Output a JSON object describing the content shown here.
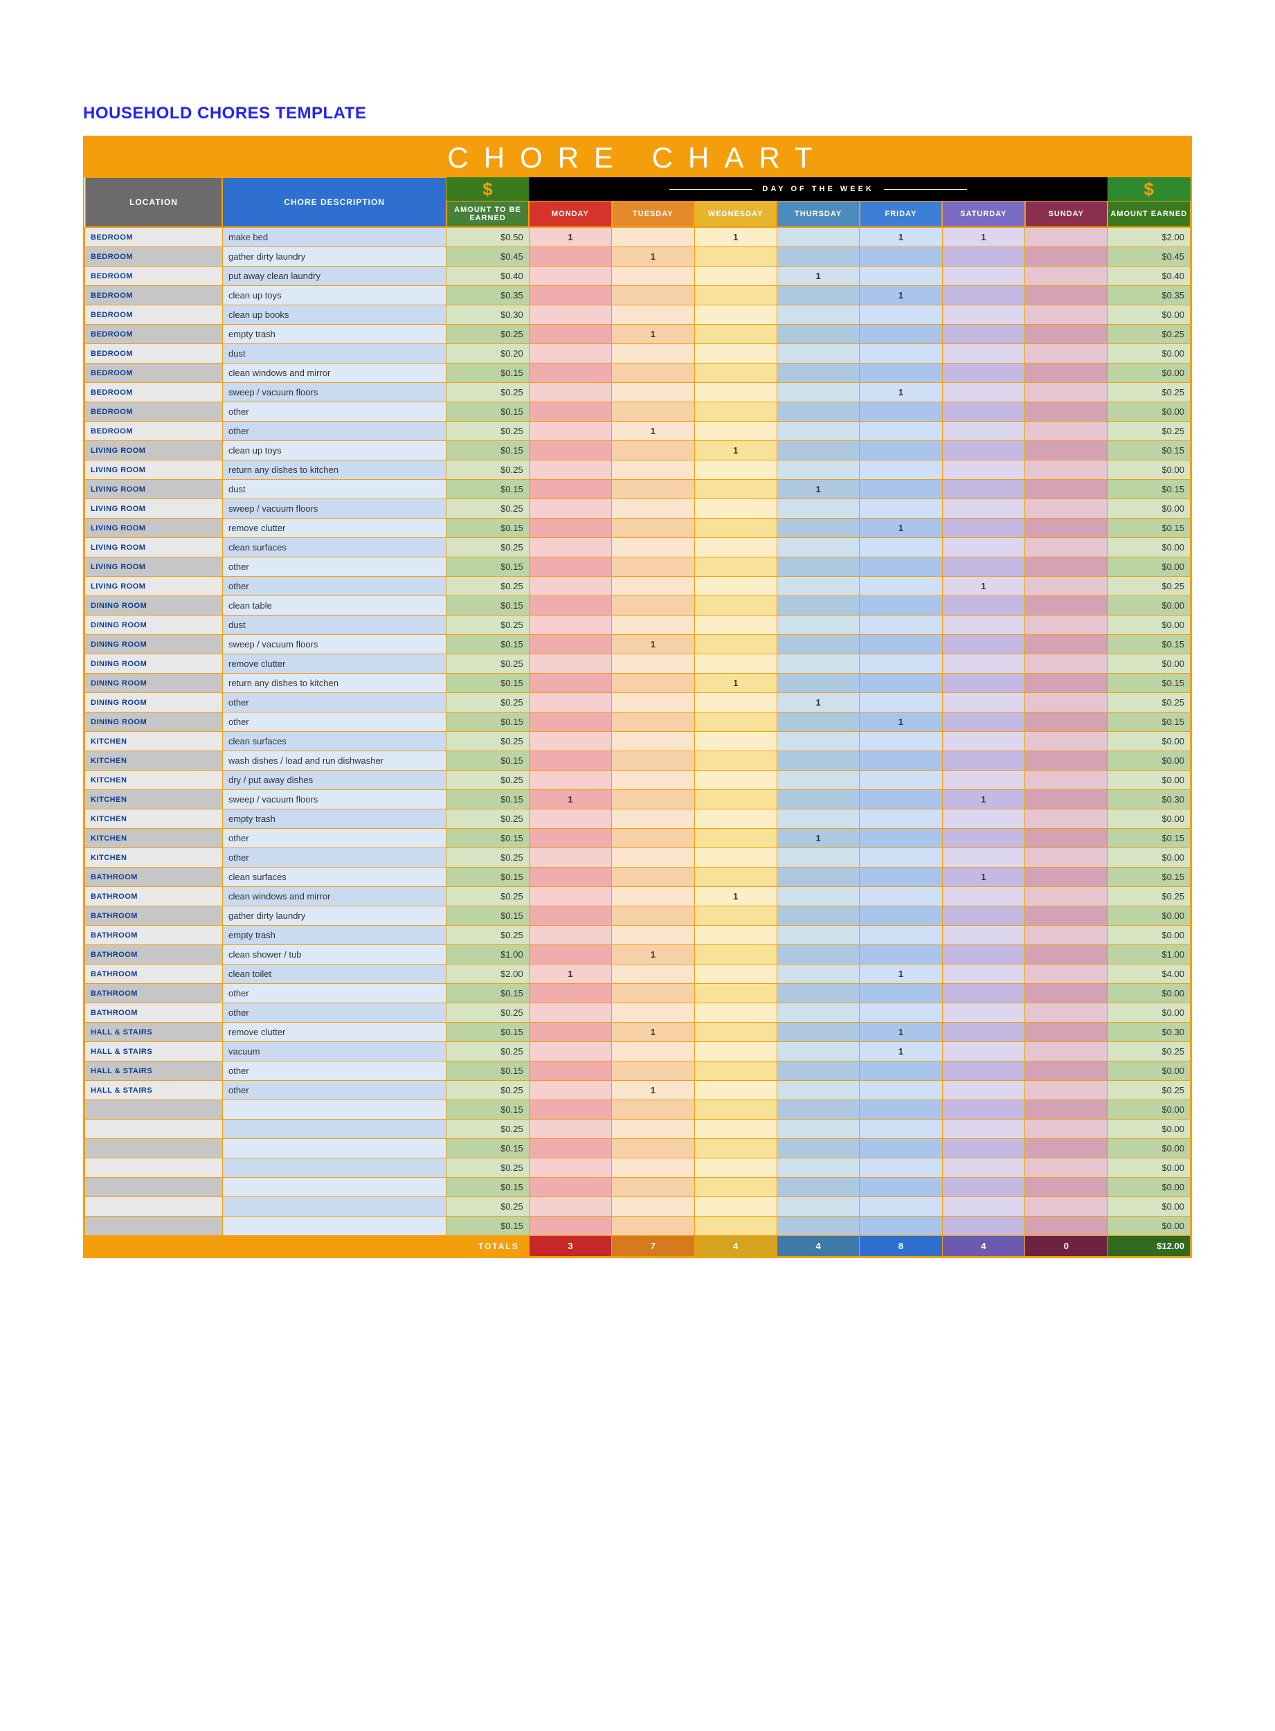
{
  "doc_heading": "HOUSEHOLD CHORES TEMPLATE",
  "chart_title": "CHORE CHART",
  "colors": {
    "accent": "#f59e0b",
    "title_text": "#ffffff",
    "heading_text": "#2222ff",
    "loc_bg_even": "#e8e8e8",
    "loc_bg_odd": "#c6c6c6",
    "loc_text": "#0b3d91",
    "desc_bg_even": "#c9daf1",
    "desc_bg_odd": "#dee9f7",
    "amt_bg_even": "#d6e4c3",
    "amt_bg_odd": "#bcd3a3",
    "day_mon": "#d6342a",
    "day_tue": "#e58a2a",
    "day_wed": "#e7b52e",
    "day_thu": "#4d8bbf",
    "day_fri": "#3e7fd6",
    "day_sat": "#7a6bc4",
    "day_sun": "#8a2f4f",
    "dollar_a": "#3a7a1e",
    "dollar_b": "#2f8a2f",
    "week_bg": "#000000",
    "totals_bg": "#f59e0b"
  },
  "header": {
    "location": "LOCATION",
    "chore_description": "CHORE DESCRIPTION",
    "dollar_sign": "$",
    "day_of_week": "DAY OF THE WEEK",
    "amount_to_be_earned": "AMOUNT TO BE EARNED",
    "amount_earned": "AMOUNT EARNED",
    "days": [
      "MONDAY",
      "TUESDAY",
      "WEDNESDAY",
      "THURSDAY",
      "FRIDAY",
      "SATURDAY",
      "SUNDAY"
    ]
  },
  "rows": [
    {
      "loc": "BEDROOM",
      "desc": "make bed",
      "amt": "$0.50",
      "days": [
        "1",
        "",
        "1",
        "",
        "1",
        "1",
        ""
      ],
      "earned": "$2.00"
    },
    {
      "loc": "BEDROOM",
      "desc": "gather dirty laundry",
      "amt": "$0.45",
      "days": [
        "",
        "1",
        "",
        "",
        "",
        "",
        ""
      ],
      "earned": "$0.45"
    },
    {
      "loc": "BEDROOM",
      "desc": "put away clean laundry",
      "amt": "$0.40",
      "days": [
        "",
        "",
        "",
        "1",
        "",
        "",
        ""
      ],
      "earned": "$0.40"
    },
    {
      "loc": "BEDROOM",
      "desc": "clean up toys",
      "amt": "$0.35",
      "days": [
        "",
        "",
        "",
        "",
        "1",
        "",
        ""
      ],
      "earned": "$0.35"
    },
    {
      "loc": "BEDROOM",
      "desc": "clean up books",
      "amt": "$0.30",
      "days": [
        "",
        "",
        "",
        "",
        "",
        "",
        ""
      ],
      "earned": "$0.00"
    },
    {
      "loc": "BEDROOM",
      "desc": "empty trash",
      "amt": "$0.25",
      "days": [
        "",
        "1",
        "",
        "",
        "",
        "",
        ""
      ],
      "earned": "$0.25"
    },
    {
      "loc": "BEDROOM",
      "desc": "dust",
      "amt": "$0.20",
      "days": [
        "",
        "",
        "",
        "",
        "",
        "",
        ""
      ],
      "earned": "$0.00"
    },
    {
      "loc": "BEDROOM",
      "desc": "clean windows and mirror",
      "amt": "$0.15",
      "days": [
        "",
        "",
        "",
        "",
        "",
        "",
        ""
      ],
      "earned": "$0.00"
    },
    {
      "loc": "BEDROOM",
      "desc": "sweep / vacuum floors",
      "amt": "$0.25",
      "days": [
        "",
        "",
        "",
        "",
        "1",
        "",
        ""
      ],
      "earned": "$0.25"
    },
    {
      "loc": "BEDROOM",
      "desc": "other",
      "amt": "$0.15",
      "days": [
        "",
        "",
        "",
        "",
        "",
        "",
        ""
      ],
      "earned": "$0.00"
    },
    {
      "loc": "BEDROOM",
      "desc": "other",
      "amt": "$0.25",
      "days": [
        "",
        "1",
        "",
        "",
        "",
        "",
        ""
      ],
      "earned": "$0.25"
    },
    {
      "loc": "LIVING ROOM",
      "desc": "clean up toys",
      "amt": "$0.15",
      "days": [
        "",
        "",
        "1",
        "",
        "",
        "",
        ""
      ],
      "earned": "$0.15"
    },
    {
      "loc": "LIVING ROOM",
      "desc": "return any dishes to kitchen",
      "amt": "$0.25",
      "days": [
        "",
        "",
        "",
        "",
        "",
        "",
        ""
      ],
      "earned": "$0.00"
    },
    {
      "loc": "LIVING ROOM",
      "desc": "dust",
      "amt": "$0.15",
      "days": [
        "",
        "",
        "",
        "1",
        "",
        "",
        ""
      ],
      "earned": "$0.15"
    },
    {
      "loc": "LIVING ROOM",
      "desc": "sweep / vacuum floors",
      "amt": "$0.25",
      "days": [
        "",
        "",
        "",
        "",
        "",
        "",
        ""
      ],
      "earned": "$0.00"
    },
    {
      "loc": "LIVING ROOM",
      "desc": "remove clutter",
      "amt": "$0.15",
      "days": [
        "",
        "",
        "",
        "",
        "1",
        "",
        ""
      ],
      "earned": "$0.15"
    },
    {
      "loc": "LIVING ROOM",
      "desc": "clean surfaces",
      "amt": "$0.25",
      "days": [
        "",
        "",
        "",
        "",
        "",
        "",
        ""
      ],
      "earned": "$0.00"
    },
    {
      "loc": "LIVING ROOM",
      "desc": "other",
      "amt": "$0.15",
      "days": [
        "",
        "",
        "",
        "",
        "",
        "",
        ""
      ],
      "earned": "$0.00"
    },
    {
      "loc": "LIVING ROOM",
      "desc": "other",
      "amt": "$0.25",
      "days": [
        "",
        "",
        "",
        "",
        "",
        "1",
        ""
      ],
      "earned": "$0.25"
    },
    {
      "loc": "DINING ROOM",
      "desc": "clean table",
      "amt": "$0.15",
      "days": [
        "",
        "",
        "",
        "",
        "",
        "",
        ""
      ],
      "earned": "$0.00"
    },
    {
      "loc": "DINING ROOM",
      "desc": "dust",
      "amt": "$0.25",
      "days": [
        "",
        "",
        "",
        "",
        "",
        "",
        ""
      ],
      "earned": "$0.00"
    },
    {
      "loc": "DINING ROOM",
      "desc": "sweep / vacuum floors",
      "amt": "$0.15",
      "days": [
        "",
        "1",
        "",
        "",
        "",
        "",
        ""
      ],
      "earned": "$0.15"
    },
    {
      "loc": "DINING ROOM",
      "desc": "remove clutter",
      "amt": "$0.25",
      "days": [
        "",
        "",
        "",
        "",
        "",
        "",
        ""
      ],
      "earned": "$0.00"
    },
    {
      "loc": "DINING ROOM",
      "desc": "return any dishes to kitchen",
      "amt": "$0.15",
      "days": [
        "",
        "",
        "1",
        "",
        "",
        "",
        ""
      ],
      "earned": "$0.15"
    },
    {
      "loc": "DINING ROOM",
      "desc": "other",
      "amt": "$0.25",
      "days": [
        "",
        "",
        "",
        "1",
        "",
        "",
        ""
      ],
      "earned": "$0.25"
    },
    {
      "loc": "DINING ROOM",
      "desc": "other",
      "amt": "$0.15",
      "days": [
        "",
        "",
        "",
        "",
        "1",
        "",
        ""
      ],
      "earned": "$0.15"
    },
    {
      "loc": "KITCHEN",
      "desc": "clean surfaces",
      "amt": "$0.25",
      "days": [
        "",
        "",
        "",
        "",
        "",
        "",
        ""
      ],
      "earned": "$0.00"
    },
    {
      "loc": "KITCHEN",
      "desc": "wash dishes / load and run dishwasher",
      "amt": "$0.15",
      "days": [
        "",
        "",
        "",
        "",
        "",
        "",
        ""
      ],
      "earned": "$0.00"
    },
    {
      "loc": "KITCHEN",
      "desc": "dry / put away dishes",
      "amt": "$0.25",
      "days": [
        "",
        "",
        "",
        "",
        "",
        "",
        ""
      ],
      "earned": "$0.00"
    },
    {
      "loc": "KITCHEN",
      "desc": "sweep / vacuum floors",
      "amt": "$0.15",
      "days": [
        "1",
        "",
        "",
        "",
        "",
        "1",
        ""
      ],
      "earned": "$0.30"
    },
    {
      "loc": "KITCHEN",
      "desc": "empty trash",
      "amt": "$0.25",
      "days": [
        "",
        "",
        "",
        "",
        "",
        "",
        ""
      ],
      "earned": "$0.00"
    },
    {
      "loc": "KITCHEN",
      "desc": "other",
      "amt": "$0.15",
      "days": [
        "",
        "",
        "",
        "1",
        "",
        "",
        ""
      ],
      "earned": "$0.15"
    },
    {
      "loc": "KITCHEN",
      "desc": "other",
      "amt": "$0.25",
      "days": [
        "",
        "",
        "",
        "",
        "",
        "",
        ""
      ],
      "earned": "$0.00"
    },
    {
      "loc": "BATHROOM",
      "desc": "clean surfaces",
      "amt": "$0.15",
      "days": [
        "",
        "",
        "",
        "",
        "",
        "1",
        ""
      ],
      "earned": "$0.15"
    },
    {
      "loc": "BATHROOM",
      "desc": "clean windows and mirror",
      "amt": "$0.25",
      "days": [
        "",
        "",
        "1",
        "",
        "",
        "",
        ""
      ],
      "earned": "$0.25"
    },
    {
      "loc": "BATHROOM",
      "desc": "gather dirty laundry",
      "amt": "$0.15",
      "days": [
        "",
        "",
        "",
        "",
        "",
        "",
        ""
      ],
      "earned": "$0.00"
    },
    {
      "loc": "BATHROOM",
      "desc": "empty trash",
      "amt": "$0.25",
      "days": [
        "",
        "",
        "",
        "",
        "",
        "",
        ""
      ],
      "earned": "$0.00"
    },
    {
      "loc": "BATHROOM",
      "desc": "clean shower / tub",
      "amt": "$1.00",
      "days": [
        "",
        "1",
        "",
        "",
        "",
        "",
        ""
      ],
      "earned": "$1.00"
    },
    {
      "loc": "BATHROOM",
      "desc": "clean toilet",
      "amt": "$2.00",
      "days": [
        "1",
        "",
        "",
        "",
        "1",
        "",
        ""
      ],
      "earned": "$4.00"
    },
    {
      "loc": "BATHROOM",
      "desc": "other",
      "amt": "$0.15",
      "days": [
        "",
        "",
        "",
        "",
        "",
        "",
        ""
      ],
      "earned": "$0.00"
    },
    {
      "loc": "BATHROOM",
      "desc": "other",
      "amt": "$0.25",
      "days": [
        "",
        "",
        "",
        "",
        "",
        "",
        ""
      ],
      "earned": "$0.00"
    },
    {
      "loc": "HALL & STAIRS",
      "desc": "remove clutter",
      "amt": "$0.15",
      "days": [
        "",
        "1",
        "",
        "",
        "1",
        "",
        ""
      ],
      "earned": "$0.30"
    },
    {
      "loc": "HALL & STAIRS",
      "desc": "vacuum",
      "amt": "$0.25",
      "days": [
        "",
        "",
        "",
        "",
        "1",
        "",
        ""
      ],
      "earned": "$0.25"
    },
    {
      "loc": "HALL & STAIRS",
      "desc": "other",
      "amt": "$0.15",
      "days": [
        "",
        "",
        "",
        "",
        "",
        "",
        ""
      ],
      "earned": "$0.00"
    },
    {
      "loc": "HALL & STAIRS",
      "desc": "other",
      "amt": "$0.25",
      "days": [
        "",
        "1",
        "",
        "",
        "",
        "",
        ""
      ],
      "earned": "$0.25"
    },
    {
      "loc": "",
      "desc": "",
      "amt": "$0.15",
      "days": [
        "",
        "",
        "",
        "",
        "",
        "",
        ""
      ],
      "earned": "$0.00"
    },
    {
      "loc": "",
      "desc": "",
      "amt": "$0.25",
      "days": [
        "",
        "",
        "",
        "",
        "",
        "",
        ""
      ],
      "earned": "$0.00"
    },
    {
      "loc": "",
      "desc": "",
      "amt": "$0.15",
      "days": [
        "",
        "",
        "",
        "",
        "",
        "",
        ""
      ],
      "earned": "$0.00"
    },
    {
      "loc": "",
      "desc": "",
      "amt": "$0.25",
      "days": [
        "",
        "",
        "",
        "",
        "",
        "",
        ""
      ],
      "earned": "$0.00"
    },
    {
      "loc": "",
      "desc": "",
      "amt": "$0.15",
      "days": [
        "",
        "",
        "",
        "",
        "",
        "",
        ""
      ],
      "earned": "$0.00"
    },
    {
      "loc": "",
      "desc": "",
      "amt": "$0.25",
      "days": [
        "",
        "",
        "",
        "",
        "",
        "",
        ""
      ],
      "earned": "$0.00"
    },
    {
      "loc": "",
      "desc": "",
      "amt": "$0.15",
      "days": [
        "",
        "",
        "",
        "",
        "",
        "",
        ""
      ],
      "earned": "$0.00"
    }
  ],
  "totals": {
    "label": "TOTALS",
    "days": [
      "3",
      "7",
      "4",
      "4",
      "8",
      "4",
      "0"
    ],
    "earned": "$12.00"
  }
}
